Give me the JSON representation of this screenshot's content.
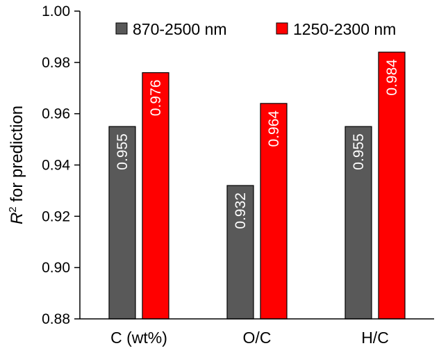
{
  "chart_data": {
    "type": "bar",
    "categories": [
      "C (wt%)",
      "O/C",
      "H/C"
    ],
    "series": [
      {
        "name": "870-2500 nm",
        "values": [
          0.955,
          0.932,
          0.955
        ],
        "labels": [
          "0.955",
          "0.932",
          "0.955"
        ],
        "color": "#595959"
      },
      {
        "name": "1250-2300 nm",
        "values": [
          0.976,
          0.964,
          0.984
        ],
        "labels": [
          "0.976",
          "0.964",
          "0.984"
        ],
        "color": "#ff0000"
      }
    ],
    "ylabel_italic": "R",
    "ylabel_sup": "2",
    "ylabel_rest": " for prediction",
    "ylim": [
      0.88,
      1.0
    ],
    "yticks": [
      "0.88",
      "0.90",
      "0.92",
      "0.94",
      "0.96",
      "0.98",
      "1.00"
    ],
    "grid": false,
    "legend_position": "top"
  }
}
